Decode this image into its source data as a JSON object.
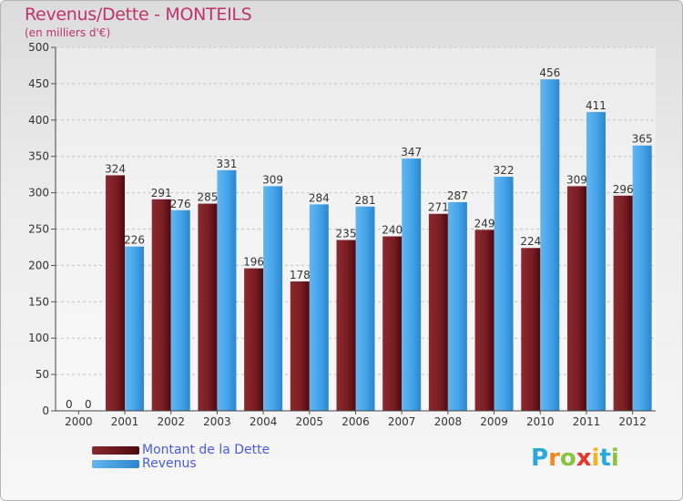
{
  "title": "Revenus/Dette - MONTEILS",
  "subtitle": "(en milliers d'€)",
  "logo": {
    "letters": [
      "P",
      "r",
      "o",
      "x",
      "i",
      "t",
      "i"
    ],
    "colors": [
      "#2aa8d8",
      "#ef8a1e",
      "#8ac43f",
      "#e8342a",
      "#f2b41c",
      "#27a9e1",
      "#8ac43f"
    ]
  },
  "chart_data": {
    "type": "bar",
    "categories": [
      "2000",
      "2001",
      "2002",
      "2003",
      "2004",
      "2005",
      "2006",
      "2007",
      "2008",
      "2009",
      "2010",
      "2011",
      "2012"
    ],
    "series": [
      {
        "name": "Montant de la Dette",
        "color": "#6a0d12",
        "values": [
          0,
          324,
          291,
          285,
          196,
          178,
          235,
          240,
          271,
          249,
          224,
          309,
          296
        ]
      },
      {
        "name": "Revenus",
        "color": "#3a9ee6",
        "values": [
          0,
          226,
          276,
          331,
          309,
          284,
          281,
          347,
          287,
          322,
          456,
          411,
          365
        ]
      }
    ],
    "yticks": [
      0,
      50,
      100,
      150,
      200,
      250,
      300,
      350,
      400,
      450,
      500
    ],
    "ylim": [
      0,
      500
    ],
    "grid": true,
    "legend": "bottom-left"
  }
}
